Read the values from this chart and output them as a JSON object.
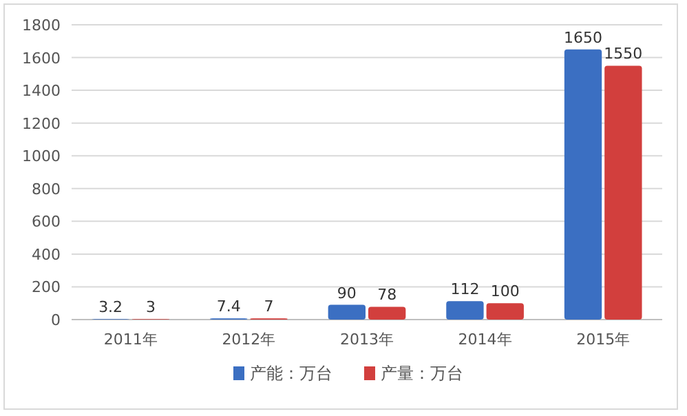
{
  "chart_data": {
    "type": "bar",
    "categories": [
      "2011年",
      "2012年",
      "2013年",
      "2014年",
      "2015年"
    ],
    "series": [
      {
        "name": "产能：万台",
        "color": "#3b6fc2",
        "values": [
          3.2,
          7.4,
          90,
          112,
          1650
        ]
      },
      {
        "name": "产量：万台",
        "color": "#d23f3d",
        "values": [
          3,
          7,
          78,
          100,
          1550
        ]
      }
    ],
    "ylim": [
      0,
      1800
    ],
    "yticks": [
      0,
      200,
      400,
      600,
      800,
      1000,
      1200,
      1400,
      1600,
      1800
    ],
    "grid": "y",
    "legend": "bottom",
    "data_labels": true
  }
}
